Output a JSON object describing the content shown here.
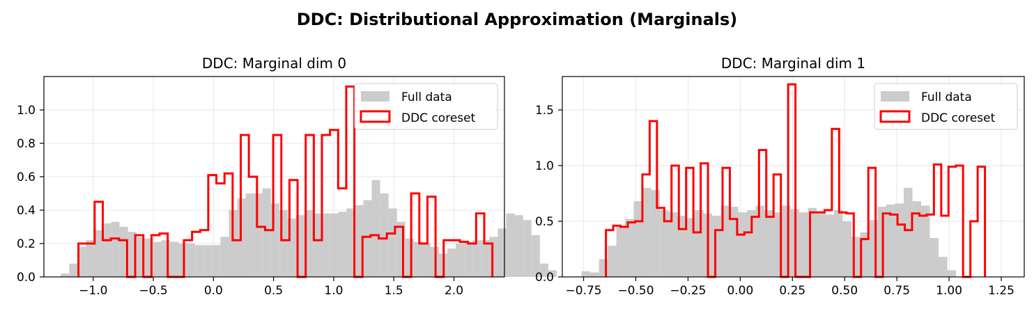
{
  "suptitle": "DDC: Distributional Approximation (Marginals)",
  "colors": {
    "full_data": "#cccccc",
    "coreset": "#ff0000",
    "grid": "#e6e6e6"
  },
  "chart_data": [
    {
      "type": "histogram",
      "title": "DDC: Marginal dim 0",
      "xlim": [
        -1.41,
        2.42
      ],
      "ylim": [
        0,
        1.2
      ],
      "xticks": [
        -1.0,
        -0.5,
        0.0,
        0.5,
        1.0,
        1.5,
        2.0
      ],
      "xtick_labels": [
        "−1.0",
        "−0.5",
        "0.0",
        "0.5",
        "1.0",
        "1.5",
        "2.0"
      ],
      "yticks": [
        0.0,
        0.2,
        0.4,
        0.6,
        0.8,
        1.0
      ],
      "ytick_labels": [
        "0.0",
        "0.2",
        "0.4",
        "0.6",
        "0.8",
        "1.0"
      ],
      "grid": true,
      "legend": {
        "position": "upper right",
        "entries": [
          "Full data",
          "DDC coreset"
        ]
      },
      "series": [
        {
          "name": "Full data",
          "kind": "filled",
          "bin_start": -1.27,
          "bin_width": 0.0699,
          "values": [
            0.02,
            0.08,
            0.18,
            0.22,
            0.28,
            0.32,
            0.33,
            0.3,
            0.27,
            0.24,
            0.23,
            0.21,
            0.22,
            0.21,
            0.2,
            0.2,
            0.19,
            0.19,
            0.19,
            0.24,
            0.4,
            0.47,
            0.5,
            0.5,
            0.53,
            0.44,
            0.4,
            0.35,
            0.37,
            0.4,
            0.38,
            0.38,
            0.38,
            0.39,
            0.41,
            0.43,
            0.46,
            0.58,
            0.5,
            0.41,
            0.33,
            0.23,
            0.21,
            0.2,
            0.18,
            0.14,
            0.17,
            0.2,
            0.21,
            0.22,
            0.22,
            0.24,
            0.29,
            0.38,
            0.37,
            0.34,
            0.25,
            0.08,
            0.04
          ]
        },
        {
          "name": "DDC coreset",
          "kind": "step",
          "bin_start": -1.123,
          "bin_width": 0.0675,
          "values": [
            0.2,
            0.2,
            0.45,
            0.22,
            0.23,
            0.22,
            0.0,
            0.25,
            0.0,
            0.25,
            0.26,
            0.0,
            0.0,
            0.22,
            0.27,
            0.28,
            0.61,
            0.56,
            0.62,
            0.22,
            0.85,
            0.6,
            0.3,
            0.28,
            0.85,
            0.22,
            0.58,
            0.0,
            0.85,
            0.22,
            0.85,
            0.88,
            0.53,
            1.14,
            0.0,
            0.24,
            0.25,
            0.23,
            0.26,
            0.3,
            0.0,
            0.5,
            0.2,
            0.48,
            0.0,
            0.22,
            0.22,
            0.21,
            0.2,
            0.38,
            0.2
          ]
        }
      ]
    },
    {
      "type": "histogram",
      "title": "DDC: Marginal dim 1",
      "xlim": [
        -0.852,
        1.36
      ],
      "ylim": [
        0,
        1.8
      ],
      "xticks": [
        -0.75,
        -0.5,
        -0.25,
        0.0,
        0.25,
        0.5,
        0.75,
        1.0,
        1.25
      ],
      "xtick_labels": [
        "−0.75",
        "−0.50",
        "−0.25",
        "0.00",
        "0.25",
        "0.50",
        "0.75",
        "1.00",
        "1.25"
      ],
      "yticks": [
        0.0,
        0.5,
        1.0,
        1.5
      ],
      "ytick_labels": [
        "0.0",
        "0.5",
        "1.0",
        "1.5"
      ],
      "grid": true,
      "legend": {
        "position": "upper right",
        "entries": [
          "Full data",
          "DDC coreset"
        ]
      },
      "series": [
        {
          "name": "Full data",
          "kind": "filled",
          "bin_start": -0.76,
          "bin_width": 0.0417,
          "values": [
            0.05,
            0.04,
            0.16,
            0.28,
            0.46,
            0.52,
            0.68,
            0.8,
            0.78,
            0.6,
            0.58,
            0.55,
            0.53,
            0.6,
            0.57,
            0.55,
            0.64,
            0.63,
            0.58,
            0.6,
            0.64,
            0.6,
            0.58,
            0.64,
            0.61,
            0.58,
            0.62,
            0.59,
            0.56,
            0.6,
            0.5,
            0.36,
            0.4,
            0.51,
            0.63,
            0.65,
            0.66,
            0.8,
            0.68,
            0.64,
            0.35,
            0.18,
            0.06,
            0.0,
            0.01
          ]
        },
        {
          "name": "DDC coreset",
          "kind": "step",
          "bin_start": -0.643,
          "bin_width": 0.0349,
          "values": [
            0.42,
            0.46,
            0.45,
            0.49,
            0.5,
            0.92,
            1.4,
            0.62,
            0.5,
            1.0,
            0.43,
            0.98,
            0.4,
            1.02,
            0.0,
            0.42,
            0.98,
            0.52,
            0.38,
            0.4,
            0.54,
            1.14,
            0.54,
            0.92,
            0.0,
            1.73,
            0.0,
            0.0,
            0.58,
            0.58,
            0.6,
            1.33,
            0.58,
            0.57,
            0.0,
            0.34,
            0.98,
            0.0,
            0.57,
            0.56,
            0.47,
            0.42,
            0.57,
            0.55,
            0.56,
            1.01,
            0.55,
            0.99,
            1.0,
            0.0,
            0.5,
            0.99
          ]
        }
      ]
    }
  ]
}
